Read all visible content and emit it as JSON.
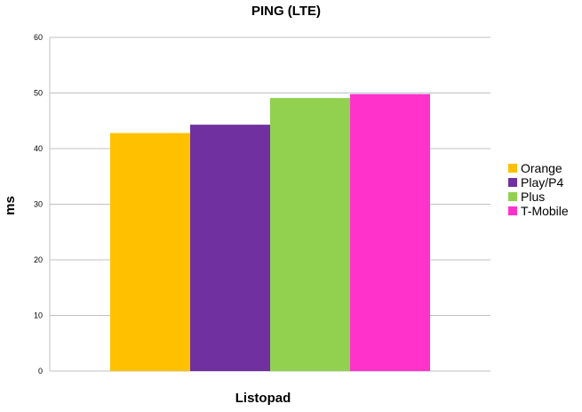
{
  "chart_data": {
    "type": "bar",
    "title": "PING (LTE)",
    "xlabel": "Listopad",
    "ylabel": "ms",
    "ylim": [
      0,
      60
    ],
    "yticks": [
      0,
      10,
      20,
      30,
      40,
      50,
      60
    ],
    "grid": true,
    "legend_position": "right",
    "categories": [
      "Listopad"
    ],
    "series": [
      {
        "name": "Orange",
        "values": [
          42.8
        ],
        "color": "#ffc000"
      },
      {
        "name": "Play/P4",
        "values": [
          44.3
        ],
        "color": "#7030a0"
      },
      {
        "name": "Plus",
        "values": [
          49.1
        ],
        "color": "#92d050"
      },
      {
        "name": "T-Mobile",
        "values": [
          49.8
        ],
        "color": "#ff33cc"
      }
    ]
  }
}
